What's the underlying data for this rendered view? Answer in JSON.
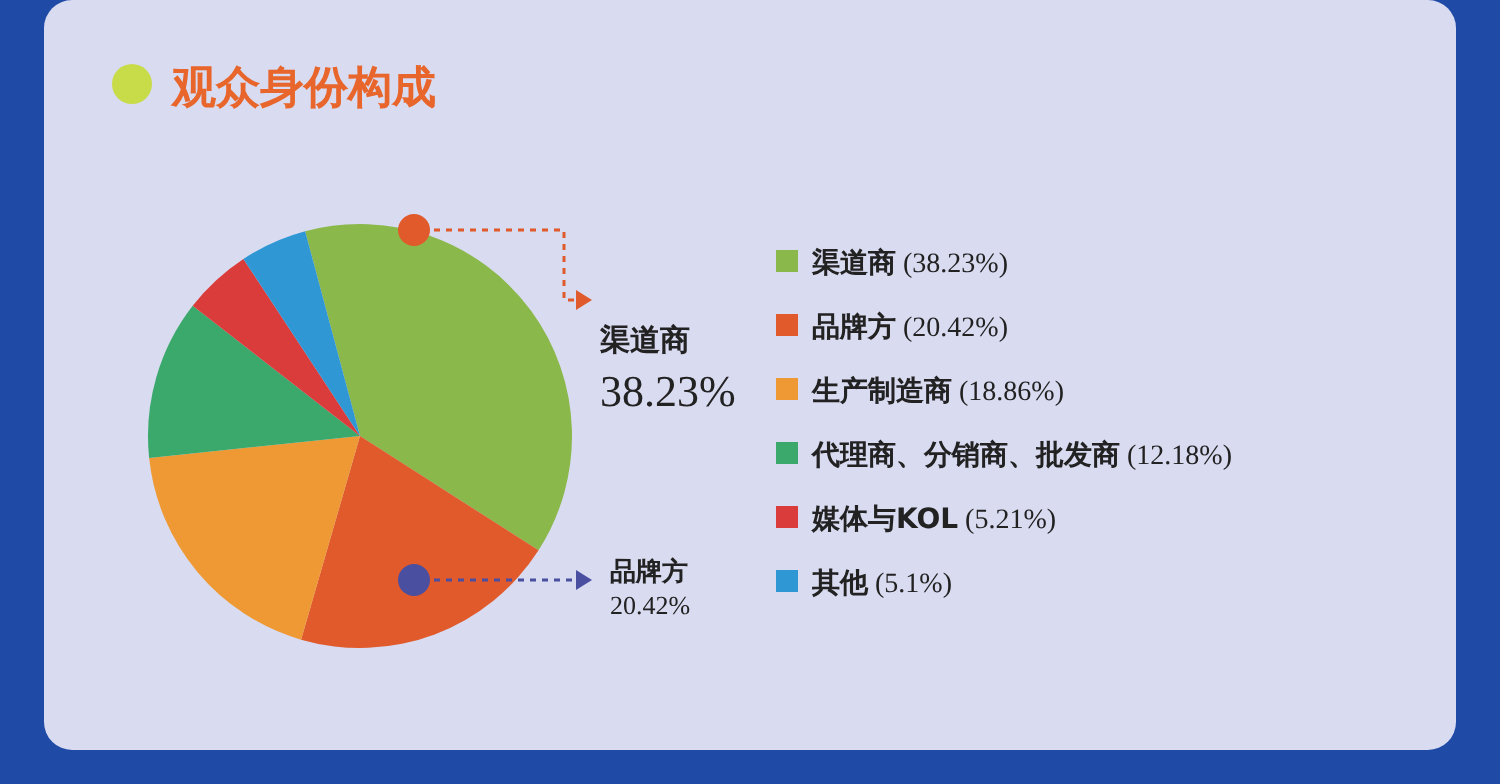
{
  "chart_data": {
    "type": "pie",
    "title": "观众身份构成",
    "categories": [
      "渠道商",
      "品牌方",
      "生产制造商",
      "代理商、分销商、批发商",
      "媒体与KOL",
      "其他"
    ],
    "values": [
      38.23,
      20.42,
      18.86,
      12.18,
      5.21,
      5.1
    ],
    "colors": [
      "#8bb84a",
      "#e05a2b",
      "#ee9933",
      "#3ba86c",
      "#d93c3a",
      "#2f97d4"
    ],
    "value_labels": [
      "(38.23%)",
      "(20.42%)",
      "(18.86%)",
      "(12.18%)",
      "(5.21%)",
      "(5.1%)"
    ],
    "annotations": [
      "渠道商",
      "38.23%",
      "品牌方",
      "20.42%"
    ],
    "legend": "right"
  }
}
